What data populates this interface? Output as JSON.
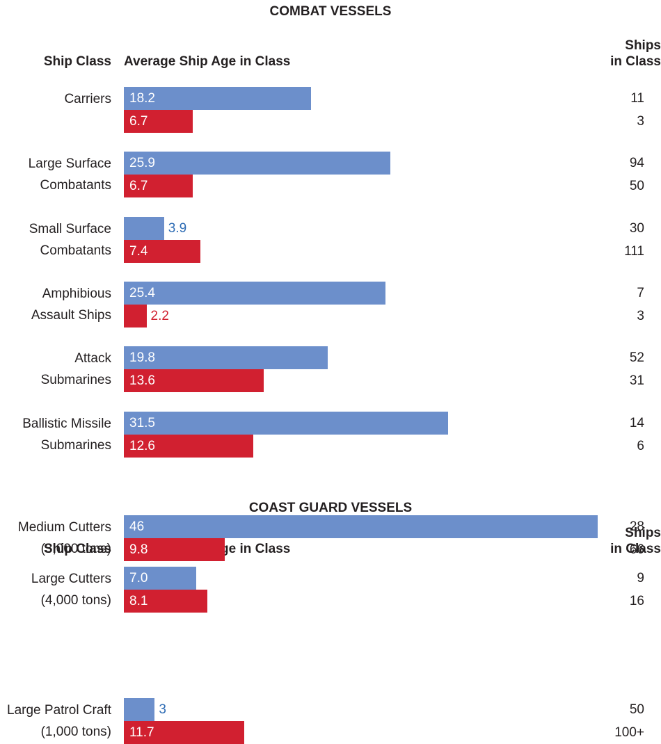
{
  "chart_data": [
    {
      "type": "bar",
      "orientation": "horizontal",
      "title": "COMBAT VESSELS",
      "category_header": "Ship Class",
      "value_header": "Average Ship Age in Class",
      "count_header": [
        "Ships",
        "in Class"
      ],
      "colors": [
        "#6c8fcb",
        "#d12030"
      ],
      "categories": [
        [
          "Carriers"
        ],
        [
          "Large Surface",
          "Combatants"
        ],
        [
          "Small Surface",
          "Combatants"
        ],
        [
          "Amphibious",
          "Assault Ships"
        ],
        [
          "Attack",
          "Submarines"
        ],
        [
          "Ballistic Missile",
          "Submarines"
        ]
      ],
      "series": [
        {
          "labels": [
            "18.2",
            "25.9",
            "3.9",
            "25.4",
            "19.8",
            "31.5"
          ],
          "values": [
            18.2,
            25.9,
            3.9,
            25.4,
            19.8,
            31.5
          ],
          "counts": [
            "11",
            "94",
            "30",
            "7",
            "52",
            "14"
          ]
        },
        {
          "labels": [
            "6.7",
            "6.7",
            "7.4",
            "2.2",
            "13.6",
            "12.6"
          ],
          "values": [
            6.7,
            6.7,
            7.4,
            2.2,
            13.6,
            12.6
          ],
          "counts": [
            "3",
            "50",
            "111",
            "3",
            "31",
            "6"
          ]
        }
      ]
    },
    {
      "type": "bar",
      "orientation": "horizontal",
      "title": "COAST GUARD VESSELS",
      "category_header": "Ship Class",
      "value_header": "Average Ship Age in Class",
      "count_header": [
        "Ships",
        "in Class"
      ],
      "colors": [
        "#6c8fcb",
        "#d12030"
      ],
      "categories": [
        [
          "Large Cutters",
          "(4,000 tons)"
        ],
        [
          "Medium Cutters",
          "(3,000 tons)"
        ],
        [
          "Large Patrol Craft",
          "(1,000 tons)"
        ]
      ],
      "series": [
        {
          "labels": [
            "7.0",
            "46",
            "3"
          ],
          "values": [
            7.0,
            46,
            3
          ],
          "counts": [
            "9",
            "28",
            "50"
          ]
        },
        {
          "labels": [
            "8.1",
            "9.8",
            "11.7"
          ],
          "values": [
            8.1,
            9.8,
            11.7
          ],
          "counts": [
            "16",
            "66",
            "100+"
          ]
        }
      ]
    }
  ]
}
